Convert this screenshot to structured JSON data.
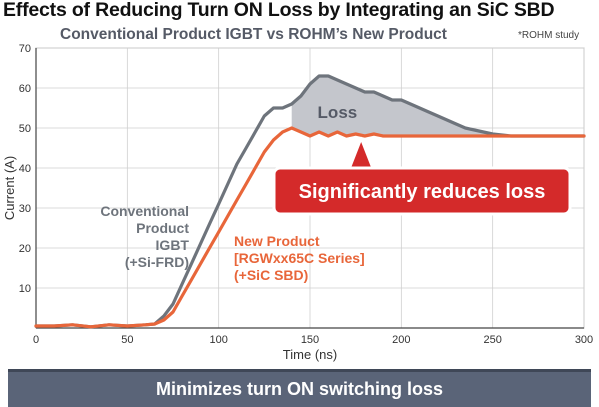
{
  "header": {
    "title": "Effects of Reducing Turn ON Loss by Integrating an SiC SBD",
    "subtitle": "Conventional Product IGBT vs ROHM’s New Product",
    "note": "*ROHM study"
  },
  "banner": {
    "text": "Minimizes turn ON switching loss"
  },
  "chart_data": {
    "type": "line",
    "xlabel": "Time (ns)",
    "ylabel": "Current (A)",
    "xlim": [
      0,
      300
    ],
    "ylim": [
      0,
      70
    ],
    "xticks": [
      0,
      50,
      100,
      150,
      200,
      250,
      300
    ],
    "yticks": [
      10,
      20,
      30,
      40,
      50,
      60,
      70
    ],
    "grid": true,
    "series": [
      {
        "name_lines": [
          "Conventional",
          "Product",
          "IGBT",
          "(+Si-FRD)"
        ],
        "color": "#6e747c",
        "points": [
          [
            0,
            0.5
          ],
          [
            10,
            0.5
          ],
          [
            20,
            0.8
          ],
          [
            30,
            0.3
          ],
          [
            40,
            0.8
          ],
          [
            50,
            0.5
          ],
          [
            60,
            0.8
          ],
          [
            65,
            1
          ],
          [
            70,
            3
          ],
          [
            75,
            6
          ],
          [
            80,
            11
          ],
          [
            85,
            16
          ],
          [
            90,
            21
          ],
          [
            95,
            26
          ],
          [
            100,
            31
          ],
          [
            105,
            36
          ],
          [
            110,
            41
          ],
          [
            115,
            45
          ],
          [
            120,
            49
          ],
          [
            125,
            53
          ],
          [
            130,
            55
          ],
          [
            135,
            55
          ],
          [
            140,
            56
          ],
          [
            145,
            58
          ],
          [
            150,
            61
          ],
          [
            155,
            63
          ],
          [
            160,
            63
          ],
          [
            165,
            62
          ],
          [
            170,
            61
          ],
          [
            175,
            60
          ],
          [
            180,
            59
          ],
          [
            185,
            59
          ],
          [
            190,
            58
          ],
          [
            195,
            57
          ],
          [
            200,
            57
          ],
          [
            205,
            56
          ],
          [
            210,
            55
          ],
          [
            215,
            54
          ],
          [
            220,
            53
          ],
          [
            225,
            52
          ],
          [
            230,
            51
          ],
          [
            235,
            50
          ],
          [
            240,
            49.5
          ],
          [
            245,
            49
          ],
          [
            250,
            48.5
          ],
          [
            260,
            48
          ],
          [
            270,
            48
          ],
          [
            280,
            48
          ],
          [
            290,
            48
          ],
          [
            300,
            48
          ]
        ]
      },
      {
        "name_lines": [
          "New Product",
          "[RGWxx65C Series]",
          "(+SiC SBD)"
        ],
        "color": "#e8663a",
        "points": [
          [
            0,
            0.5
          ],
          [
            10,
            0.5
          ],
          [
            20,
            0.8
          ],
          [
            30,
            0.3
          ],
          [
            40,
            0.8
          ],
          [
            50,
            0.5
          ],
          [
            60,
            0.8
          ],
          [
            65,
            1
          ],
          [
            70,
            2
          ],
          [
            75,
            4
          ],
          [
            80,
            8
          ],
          [
            85,
            12
          ],
          [
            90,
            16
          ],
          [
            95,
            20
          ],
          [
            100,
            24
          ],
          [
            105,
            28
          ],
          [
            110,
            32
          ],
          [
            115,
            36
          ],
          [
            120,
            40
          ],
          [
            125,
            44
          ],
          [
            130,
            47
          ],
          [
            135,
            49
          ],
          [
            140,
            50
          ],
          [
            145,
            49
          ],
          [
            150,
            48
          ],
          [
            155,
            49
          ],
          [
            160,
            48
          ],
          [
            165,
            49
          ],
          [
            170,
            48
          ],
          [
            175,
            48.5
          ],
          [
            180,
            48
          ],
          [
            185,
            48.5
          ],
          [
            190,
            48
          ],
          [
            200,
            48
          ],
          [
            210,
            48
          ],
          [
            220,
            48
          ],
          [
            230,
            48
          ],
          [
            240,
            48
          ],
          [
            250,
            48
          ],
          [
            260,
            48
          ],
          [
            270,
            48
          ],
          [
            280,
            48
          ],
          [
            290,
            48
          ],
          [
            300,
            48
          ]
        ]
      }
    ],
    "annotations": {
      "loss_label": "Loss",
      "callout": "Significantly reduces loss"
    },
    "colors": {
      "loss_fill": "#c4c6cc",
      "callout_bg": "#d42a2a",
      "callout_border": "#ffffff"
    }
  }
}
